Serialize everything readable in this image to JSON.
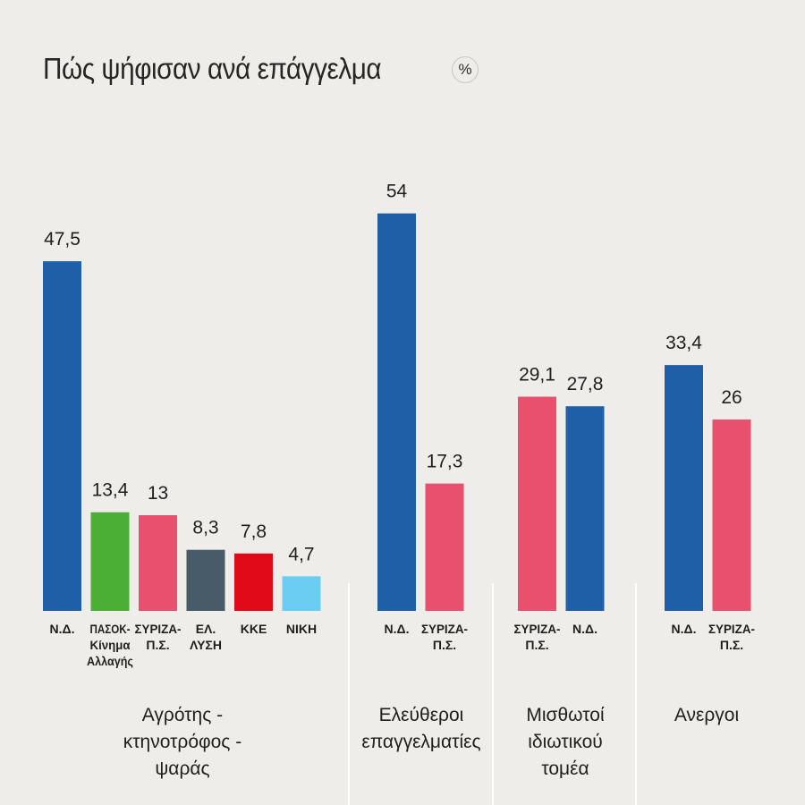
{
  "title": "Πώς ψήφισαν ανά επάγγελμα",
  "unit": "%",
  "colors": {
    "nd": "#1f5fa8",
    "pasok": "#4caf35",
    "syriza": "#e8506d",
    "ellysi": "#475c68",
    "kke": "#e00a18",
    "niki": "#6ccdf3",
    "background": "#efede9",
    "divider": "#ffffff"
  },
  "chart_data": {
    "type": "bar",
    "unit": "%",
    "groups": [
      {
        "name": "Αγρότης - κτηνοτρόφος - ψαράς",
        "name_lines": [
          "Αγρότης -",
          "κτηνοτρόφος -",
          "ψαράς"
        ],
        "bars": [
          {
            "party": "Ν.Δ.",
            "label_lines": [
              "Ν.Δ."
            ],
            "value": 47.5,
            "value_label": "47,5",
            "color": "#1f5fa8"
          },
          {
            "party": "ΠΑΣΟΚ-Κίνημα Αλλαγής",
            "label_lines": [
              "ΠΑΣΟΚ-",
              "Κίνημα",
              "Αλλαγής"
            ],
            "value": 13.4,
            "value_label": "13,4",
            "color": "#4caf35"
          },
          {
            "party": "ΣΥΡΙΖΑ-Π.Σ.",
            "label_lines": [
              "ΣΥΡΙΖΑ-",
              "Π.Σ."
            ],
            "value": 13,
            "value_label": "13",
            "color": "#e8506d"
          },
          {
            "party": "ΕΛ. ΛΥΣΗ",
            "label_lines": [
              "ΕΛ.",
              "ΛΥΣΗ"
            ],
            "value": 8.3,
            "value_label": "8,3",
            "color": "#475c68"
          },
          {
            "party": "ΚΚΕ",
            "label_lines": [
              "ΚΚΕ"
            ],
            "value": 7.8,
            "value_label": "7,8",
            "color": "#e00a18"
          },
          {
            "party": "ΝΙΚΗ",
            "label_lines": [
              "ΝΙΚΗ"
            ],
            "value": 4.7,
            "value_label": "4,7",
            "color": "#6ccdf3"
          }
        ]
      },
      {
        "name": "Ελεύθεροι επαγγελματίες",
        "name_lines": [
          "Ελεύθεροι",
          "επαγγελματίες"
        ],
        "bars": [
          {
            "party": "Ν.Δ.",
            "label_lines": [
              "Ν.Δ."
            ],
            "value": 54,
            "value_label": "54",
            "color": "#1f5fa8"
          },
          {
            "party": "ΣΥΡΙΖΑ-Π.Σ.",
            "label_lines": [
              "ΣΥΡΙΖΑ-",
              "Π.Σ."
            ],
            "value": 17.3,
            "value_label": "17,3",
            "color": "#e8506d"
          }
        ]
      },
      {
        "name": "Μισθωτοί ιδιωτικού τομέα",
        "name_lines": [
          "Μισθωτοί",
          "ιδιωτικού",
          "τομέα"
        ],
        "bars": [
          {
            "party": "ΣΥΡΙΖΑ-Π.Σ.",
            "label_lines": [
              "ΣΥΡΙΖΑ-",
              "Π.Σ."
            ],
            "value": 29.1,
            "value_label": "29,1",
            "color": "#e8506d"
          },
          {
            "party": "Ν.Δ.",
            "label_lines": [
              "Ν.Δ."
            ],
            "value": 27.8,
            "value_label": "27,8",
            "color": "#1f5fa8"
          }
        ]
      },
      {
        "name": "Ανεργοι",
        "name_lines": [
          "Ανεργοι"
        ],
        "bars": [
          {
            "party": "Ν.Δ.",
            "label_lines": [
              "Ν.Δ."
            ],
            "value": 33.4,
            "value_label": "33,4",
            "color": "#1f5fa8"
          },
          {
            "party": "ΣΥΡΙΖΑ-Π.Σ.",
            "label_lines": [
              "ΣΥΡΙΖΑ-",
              "Π.Σ."
            ],
            "value": 26,
            "value_label": "26",
            "color": "#e8506d"
          }
        ]
      }
    ],
    "ylim": [
      0,
      60
    ],
    "grid": false,
    "legend": "none",
    "axis_labels_shown": false
  }
}
